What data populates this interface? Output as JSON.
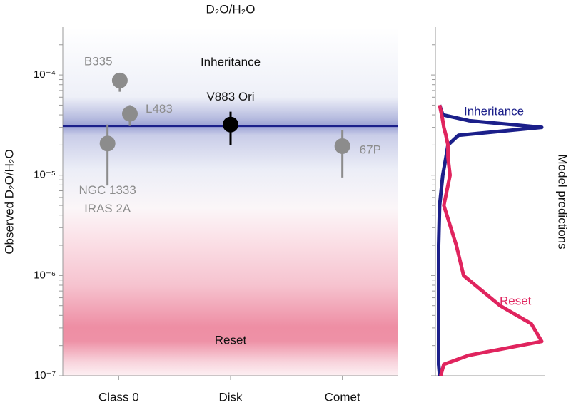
{
  "chart_data": [
    {
      "type": "scatter",
      "title": "D₂O/H₂O",
      "y_label": "Observed D₂O/H₂O",
      "log_y": true,
      "ylim": [
        1e-07,
        0.0003
      ],
      "yticks": [
        {
          "value": 1e-07,
          "label": "10⁻⁷"
        },
        {
          "value": 1e-06,
          "label": "10⁻⁶"
        },
        {
          "value": 1e-05,
          "label": "10⁻⁵"
        },
        {
          "value": 0.0001,
          "label": "10⁻⁴"
        }
      ],
      "xlim": [
        -0.5,
        2.5
      ],
      "xticks": [
        {
          "value": 0,
          "label": "Class 0"
        },
        {
          "value": 1,
          "label": "Disk"
        },
        {
          "value": 2,
          "label": "Comet"
        }
      ],
      "hline": {
        "value": 3.1e-05,
        "color": "#1b1f8a"
      },
      "annotations": [
        "Inheritance",
        "Reset"
      ],
      "series": [
        {
          "label_lines": [
            "B335"
          ],
          "color": "#8c8c8c",
          "x": [
            0.01
          ],
          "values": [
            8.8e-05
          ],
          "low": [
            6.8e-05
          ],
          "high": [
            0.0001
          ]
        },
        {
          "label_lines": [
            "L483"
          ],
          "color": "#8c8c8c",
          "x": [
            0.1
          ],
          "values": [
            4.1e-05
          ],
          "low": [
            3.1e-05
          ],
          "high": [
            5e-05
          ]
        },
        {
          "label_lines": [
            "NGC 1333",
            "IRAS 2A"
          ],
          "color": "#8c8c8c",
          "x": [
            -0.1
          ],
          "values": [
            2.07e-05
          ],
          "low": [
            7.9e-06
          ],
          "high": [
            3.2e-05
          ]
        },
        {
          "label_lines": [
            "V883 Ori"
          ],
          "color": "#000000",
          "x": [
            1
          ],
          "values": [
            3.2e-05
          ],
          "low": [
            2e-05
          ],
          "high": [
            4.3e-05
          ]
        },
        {
          "label_lines": [
            "67P"
          ],
          "color": "#8c8c8c",
          "x": [
            2
          ],
          "values": [
            1.95e-05
          ],
          "low": [
            9.5e-06
          ],
          "high": [
            2.8e-05
          ]
        }
      ]
    },
    {
      "type": "line",
      "orientation": "vertical",
      "y_label": "Model predictions",
      "log_x": true,
      "xlim": [
        1e-07,
        0.0003
      ],
      "ylim": [
        0,
        1
      ],
      "x": [
        1e-07,
        1.3e-07,
        1.6e-07,
        2.2e-07,
        3.3e-07,
        5e-07,
        1e-06,
        2e-06,
        5e-06,
        1e-05,
        1.5e-05,
        2e-05,
        2.5e-05,
        3e-05,
        3.5e-05,
        4e-05,
        5e-05
      ],
      "series": [
        {
          "name": "Inheritance",
          "color": "#1b1f8a",
          "values": [
            0.02,
            0.01,
            0.01,
            0.01,
            0.01,
            0.01,
            0.01,
            0.01,
            0.02,
            0.05,
            0.08,
            0.1,
            0.2,
            1.0,
            0.3,
            0.05,
            0.02
          ]
        },
        {
          "name": "Reset",
          "color": "#e0245e",
          "values": [
            0.03,
            0.06,
            0.3,
            1.0,
            0.9,
            0.6,
            0.25,
            0.18,
            0.06,
            0.12,
            0.1,
            0.1,
            0.08,
            0.06,
            0.05,
            0.04,
            0.02
          ]
        }
      ]
    }
  ]
}
